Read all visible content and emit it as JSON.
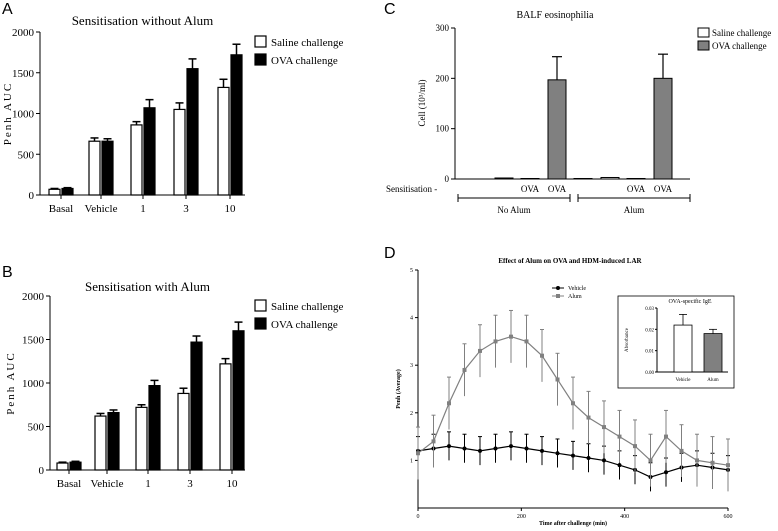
{
  "chart_data": [
    {
      "panel": "A",
      "type": "bar",
      "title": "Sensitisation without Alum",
      "ylabel": "Penh AUC",
      "xlabel": "",
      "ylim": [
        0,
        2000
      ],
      "yticks": [
        0,
        500,
        1000,
        1500,
        2000
      ],
      "categories": [
        "Basal",
        "Vehicle",
        "1",
        "3",
        "10"
      ],
      "series": [
        {
          "name": "Saline challenge",
          "color": "#ffffff",
          "values": [
            70,
            660,
            860,
            1050,
            1320
          ],
          "errors": [
            10,
            40,
            40,
            80,
            100
          ]
        },
        {
          "name": "OVA challenge",
          "color": "#000000",
          "values": [
            80,
            660,
            1070,
            1550,
            1720
          ],
          "errors": [
            10,
            30,
            100,
            120,
            130
          ]
        }
      ]
    },
    {
      "panel": "B",
      "type": "bar",
      "title": "Sensitisation with Alum",
      "ylabel": "Penh AUC",
      "xlabel": "",
      "ylim": [
        0,
        2000
      ],
      "yticks": [
        0,
        500,
        1000,
        1500,
        2000
      ],
      "categories": [
        "Basal",
        "Vehicle",
        "1",
        "3",
        "10"
      ],
      "series": [
        {
          "name": "Saline challenge",
          "color": "#ffffff",
          "values": [
            80,
            620,
            720,
            880,
            1220
          ],
          "errors": [
            10,
            30,
            30,
            60,
            60
          ]
        },
        {
          "name": "OVA challenge",
          "color": "#000000",
          "values": [
            90,
            660,
            970,
            1470,
            1600
          ],
          "errors": [
            10,
            30,
            60,
            70,
            100
          ]
        }
      ]
    },
    {
      "panel": "C",
      "type": "bar",
      "title": "BALF eosinophilia",
      "ylabel": "Cell (10³/ml)",
      "xlabel": "",
      "ylim": [
        0,
        300
      ],
      "yticks": [
        0,
        100,
        200,
        300
      ],
      "row_label": "Sensitisation -",
      "group_labels": [
        "No Alum",
        "Alum"
      ],
      "categories": [
        "",
        "",
        "OVA",
        "OVA",
        "",
        "",
        "OVA",
        "OVA"
      ],
      "series": [
        {
          "name": "Saline challenge",
          "color": "#ffffff",
          "values": [
            0,
            2,
            1,
            null,
            1,
            3,
            1,
            null
          ],
          "errors": [
            0,
            0,
            0,
            0,
            0,
            0,
            0,
            0
          ]
        },
        {
          "name": "OVA challenge",
          "color": "#808080",
          "values": [
            null,
            null,
            null,
            197,
            null,
            null,
            null,
            200
          ],
          "errors": [
            0,
            0,
            0,
            46,
            0,
            0,
            0,
            48
          ]
        }
      ]
    },
    {
      "panel": "D",
      "type": "line",
      "title": "Effect of Alum on OVA and HDM-induced LAR",
      "xlabel": "Time after challenge (min)",
      "ylabel": "Penh (Average)",
      "xlim": [
        0,
        600
      ],
      "ylim": [
        0,
        5
      ],
      "xticks": [
        0,
        200,
        400,
        600
      ],
      "yticks": [
        1,
        2,
        3,
        4,
        5
      ],
      "x": [
        0,
        30,
        60,
        90,
        120,
        150,
        180,
        210,
        240,
        270,
        300,
        330,
        360,
        390,
        420,
        450,
        480,
        510,
        540,
        570,
        600
      ],
      "series": [
        {
          "name": "Vehicle",
          "marker": "circle",
          "color": "#000000",
          "values": [
            1.2,
            1.25,
            1.3,
            1.25,
            1.2,
            1.25,
            1.3,
            1.25,
            1.2,
            1.15,
            1.1,
            1.05,
            1.0,
            0.9,
            0.8,
            0.65,
            0.75,
            0.85,
            0.9,
            0.85,
            0.8
          ],
          "error": 0.3
        },
        {
          "name": "Alum",
          "marker": "square",
          "color": "#808080",
          "values": [
            1.15,
            1.4,
            2.2,
            2.9,
            3.3,
            3.5,
            3.6,
            3.5,
            3.2,
            2.7,
            2.2,
            1.9,
            1.7,
            1.5,
            1.3,
            1.0,
            1.5,
            1.2,
            1.0,
            0.95,
            0.9
          ],
          "error": 0.55
        }
      ],
      "inset": {
        "type": "bar",
        "title": "OVA-specific IgE",
        "ylabel": "Absorbance",
        "ylim": [
          0,
          0.03
        ],
        "yticks": [
          "0.00",
          "0.01",
          "0.02",
          "0.03"
        ],
        "categories": [
          "Vehicle",
          "Alum"
        ],
        "colors": [
          "#ffffff",
          "#808080"
        ],
        "values": [
          0.022,
          0.018
        ],
        "errors": [
          0.005,
          0.002
        ]
      }
    }
  ]
}
